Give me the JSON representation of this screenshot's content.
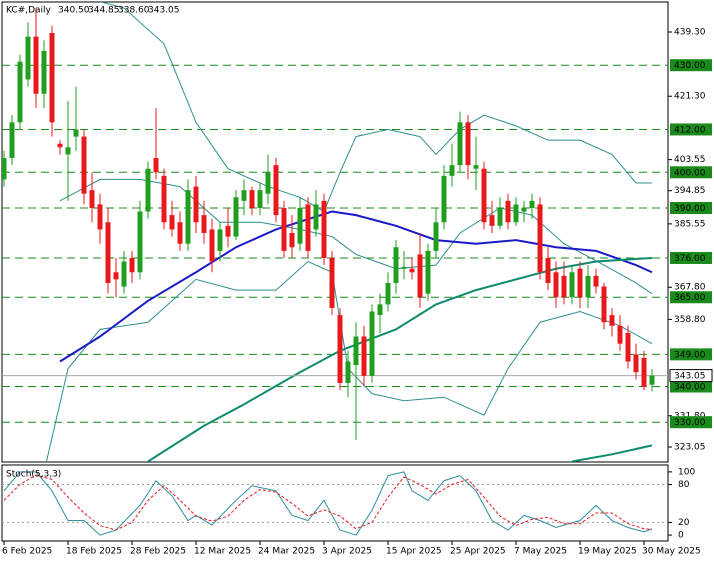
{
  "chart_data": [
    {
      "type": "candlestick",
      "title": "KC#,Daily",
      "ohlc_labels": [
        "340.50",
        "344.85",
        "338.60",
        "343.05"
      ],
      "categories": [
        "6 Feb 2025",
        null,
        null,
        null,
        null,
        null,
        null,
        null,
        "18 Feb 2025",
        null,
        null,
        null,
        null,
        null,
        null,
        null,
        "28 Feb 2025",
        null,
        null,
        null,
        null,
        null,
        null,
        null,
        "12 Mar 2025",
        null,
        null,
        null,
        null,
        null,
        null,
        null,
        "24 Mar 2025",
        null,
        null,
        null,
        null,
        null,
        null,
        null,
        "3 Apr 2025",
        null,
        null,
        null,
        null,
        null,
        null,
        null,
        "15 Apr 2025",
        null,
        null,
        null,
        null,
        null,
        null,
        null,
        "25 Apr 2025",
        null,
        null,
        null,
        null,
        null,
        null,
        null,
        "7 May 2025",
        null,
        null,
        null,
        null,
        null,
        null,
        null,
        "19 May 2025",
        null,
        null,
        null,
        null,
        null,
        null,
        null,
        "30 May 2025",
        null
      ],
      "series": [
        {
          "color_up": "#1f9e1f",
          "color_down": "#e8191c",
          "open": [
            398,
            404,
            414,
            426,
            438,
            422,
            439,
            408,
            405,
            410,
            410,
            395,
            391,
            386,
            372,
            368,
            376,
            372,
            389,
            404,
            399,
            388,
            386,
            380,
            396,
            388,
            384,
            378,
            385,
            382,
            392,
            395,
            390,
            394,
            402,
            390,
            383,
            380,
            391,
            384,
            392,
            376,
            360,
            341,
            346,
            354,
            343,
            360,
            363,
            369,
            373,
            373,
            377,
            366,
            378,
            386,
            399,
            402,
            414,
            401,
            401,
            388,
            385,
            392,
            386,
            389,
            390,
            391,
            376,
            372,
            371,
            365,
            373,
            365,
            371,
            368,
            360,
            357,
            355,
            349,
            348,
            340.5
          ],
          "high": [
            406,
            416,
            433,
            442,
            446,
            437,
            441,
            409,
            420,
            424,
            412,
            400,
            394,
            390,
            376,
            378,
            378,
            392,
            403,
            418,
            401,
            392,
            389,
            398,
            399,
            392,
            387,
            386,
            390,
            395,
            398,
            396,
            397,
            405,
            404,
            392,
            388,
            393,
            393,
            395,
            394,
            378,
            362,
            350,
            358,
            357,
            363,
            366,
            372,
            381,
            378,
            376,
            383,
            380,
            390,
            402,
            408,
            417,
            416,
            410,
            403,
            392,
            393,
            394,
            393,
            392,
            394,
            393,
            379,
            375,
            375,
            374,
            375,
            374,
            373,
            369,
            362,
            360,
            357,
            352,
            350,
            344.85
          ],
          "low": [
            396,
            402,
            412,
            424,
            418,
            418,
            410,
            405,
            392,
            406,
            391,
            386,
            380,
            366,
            365,
            366,
            369,
            370,
            387,
            398,
            384,
            382,
            378,
            378,
            383,
            380,
            372,
            375,
            379,
            381,
            388,
            388,
            388,
            391,
            386,
            376,
            376,
            378,
            376,
            382,
            374,
            360,
            339,
            337,
            325,
            340,
            341,
            355,
            361,
            366,
            370,
            370,
            362,
            364,
            376,
            384,
            396,
            400,
            398,
            395,
            384,
            383,
            384,
            384,
            385,
            386,
            387,
            370,
            367,
            362,
            363,
            363,
            362,
            362,
            366,
            356,
            354,
            350,
            345,
            342,
            339,
            338.6
          ],
          "close": [
            404,
            414,
            431,
            438,
            422,
            434,
            414,
            407,
            407,
            412,
            394,
            390,
            384,
            369,
            370,
            375,
            372,
            389,
            401,
            400,
            386,
            384,
            380,
            395,
            386,
            383,
            375,
            384,
            382,
            393,
            395,
            390,
            395,
            400,
            388,
            378,
            379,
            390,
            378,
            391,
            376,
            362,
            341,
            347,
            354,
            343,
            361,
            363,
            369,
            379,
            373.5,
            372,
            365,
            378,
            386,
            399,
            402,
            414,
            402,
            402,
            386,
            385,
            390,
            386,
            391,
            390,
            392,
            372,
            369,
            365,
            365,
            372,
            365,
            371,
            368,
            358,
            357,
            352,
            347,
            344,
            340,
            343.05
          ]
        }
      ],
      "overlays": [
        {
          "color": "#2f8f8f",
          "style": "thin",
          "x": [
            6,
            10,
            15,
            20,
            24,
            28,
            33,
            37,
            40,
            42,
            44,
            48,
            52,
            54,
            57,
            60,
            64,
            68,
            72,
            76,
            79,
            81
          ],
          "values": [
            452,
            449,
            446,
            436,
            414,
            401,
            396,
            393,
            389,
            400,
            410,
            412,
            410,
            405,
            412,
            416,
            413,
            409,
            409,
            405,
            397,
            397
          ]
        },
        {
          "color": "#2f8f8f",
          "style": "thin",
          "x": [
            7,
            12,
            17,
            22,
            27,
            32,
            37,
            41,
            44,
            49,
            54,
            57,
            62,
            66,
            70,
            75,
            79,
            81
          ],
          "values": [
            392,
            398,
            398,
            396,
            386,
            386,
            384,
            382,
            377,
            373,
            374,
            383,
            390,
            388,
            380,
            374,
            369,
            366
          ]
        },
        {
          "color": "#2f8f8f",
          "style": "thin",
          "x": [
            5,
            8,
            12,
            18,
            24,
            29,
            34,
            38,
            41,
            43,
            46,
            50,
            55,
            60,
            63,
            67,
            72,
            77,
            81
          ],
          "values": [
            316,
            345,
            356,
            358,
            370,
            367,
            367,
            375,
            372,
            345,
            338,
            336,
            337,
            332,
            345,
            358,
            361,
            357,
            352
          ]
        },
        {
          "color": "#1a1ac8",
          "style": "thick",
          "x": [
            7,
            12,
            18,
            24,
            29,
            34,
            41,
            44,
            49,
            54,
            59,
            64,
            69,
            74,
            79,
            81
          ],
          "values": [
            347,
            354,
            364,
            372,
            379,
            384,
            389,
            388,
            385,
            381,
            380,
            381,
            379,
            378,
            374,
            372
          ]
        },
        {
          "color": "#0e8a6e",
          "style": "thick",
          "x": [
            18,
            25,
            30,
            37,
            42,
            49,
            54,
            59,
            64,
            69,
            74,
            81
          ],
          "values": [
            319,
            329,
            335,
            344,
            350,
            356,
            363,
            367,
            370,
            373,
            375,
            376
          ]
        },
        {
          "color": "#0e8a6e",
          "style": "thick",
          "x": [
            71,
            76,
            81
          ],
          "values": [
            319,
            321,
            323.5
          ]
        }
      ],
      "levels": [
        {
          "value": 430,
          "label": "430.00"
        },
        {
          "value": 412,
          "label": "412.00"
        },
        {
          "value": 400,
          "label": "400.00"
        },
        {
          "value": 390,
          "label": "390.00"
        },
        {
          "value": 376,
          "label": "376.00"
        },
        {
          "value": 365,
          "label": "365.00"
        },
        {
          "value": 349,
          "label": "349.00"
        },
        {
          "value": 340,
          "label": "340.00"
        },
        {
          "value": 330,
          "label": "330.00"
        }
      ],
      "level_color": "#1a8a1a",
      "ylim": [
        318.85,
        447.7
      ],
      "yticks": [
        {
          "value": 439.3,
          "label": "439.30"
        },
        {
          "value": 421.3,
          "label": "421.30"
        },
        {
          "value": 403.55,
          "label": "403.55"
        },
        {
          "value": 394.85,
          "label": "394.85"
        },
        {
          "value": 385.55,
          "label": "385.55"
        },
        {
          "value": 367.8,
          "label": "367.80"
        },
        {
          "value": 358.8,
          "label": "358.80"
        },
        {
          "value": 331.8,
          "label": "331.80"
        },
        {
          "value": 323.05,
          "label": "323.05"
        }
      ]
    },
    {
      "type": "line",
      "title": "Stoch(5,3,3)",
      "series": [
        {
          "color": "#2f8fa0",
          "dash": false,
          "x": [
            0,
            2,
            4,
            6,
            8,
            10,
            12,
            14,
            17,
            19,
            21,
            23,
            24,
            26,
            29,
            31,
            34,
            36,
            38,
            40,
            42,
            44,
            46,
            48,
            50,
            51,
            53,
            55,
            57,
            59,
            61,
            63,
            65,
            67,
            69,
            72,
            74,
            76,
            78,
            80,
            81
          ],
          "values": [
            70,
            100,
            100,
            70,
            23,
            23,
            0,
            8,
            47,
            86,
            62,
            23,
            31,
            16,
            55,
            78,
            70,
            31,
            23,
            55,
            8,
            0,
            39,
            94,
            100,
            70,
            55,
            86,
            94,
            70,
            23,
            8,
            31,
            23,
            12,
            23,
            47,
            23,
            12,
            5,
            9.7956
          ]
        },
        {
          "color": "#e8191c",
          "dash": true,
          "x": [
            0,
            2,
            4,
            6,
            8,
            10,
            12,
            14,
            16,
            18,
            20,
            22,
            24,
            26,
            28,
            30,
            32,
            34,
            36,
            38,
            40,
            42,
            44,
            46,
            48,
            50,
            52,
            54,
            56,
            58,
            60,
            62,
            64,
            66,
            68,
            70,
            72,
            74,
            76,
            78,
            80,
            81
          ],
          "values": [
            55,
            80,
            95,
            88,
            60,
            35,
            15,
            8,
            20,
            55,
            78,
            55,
            30,
            22,
            30,
            55,
            72,
            68,
            50,
            30,
            40,
            30,
            10,
            20,
            60,
            92,
            80,
            65,
            80,
            88,
            60,
            30,
            15,
            25,
            28,
            18,
            18,
            35,
            35,
            18,
            10,
            9.1071
          ]
        }
      ],
      "ylim": [
        -9.4,
        110.9
      ],
      "yticks": [
        100,
        80,
        20,
        0
      ]
    }
  ]
}
